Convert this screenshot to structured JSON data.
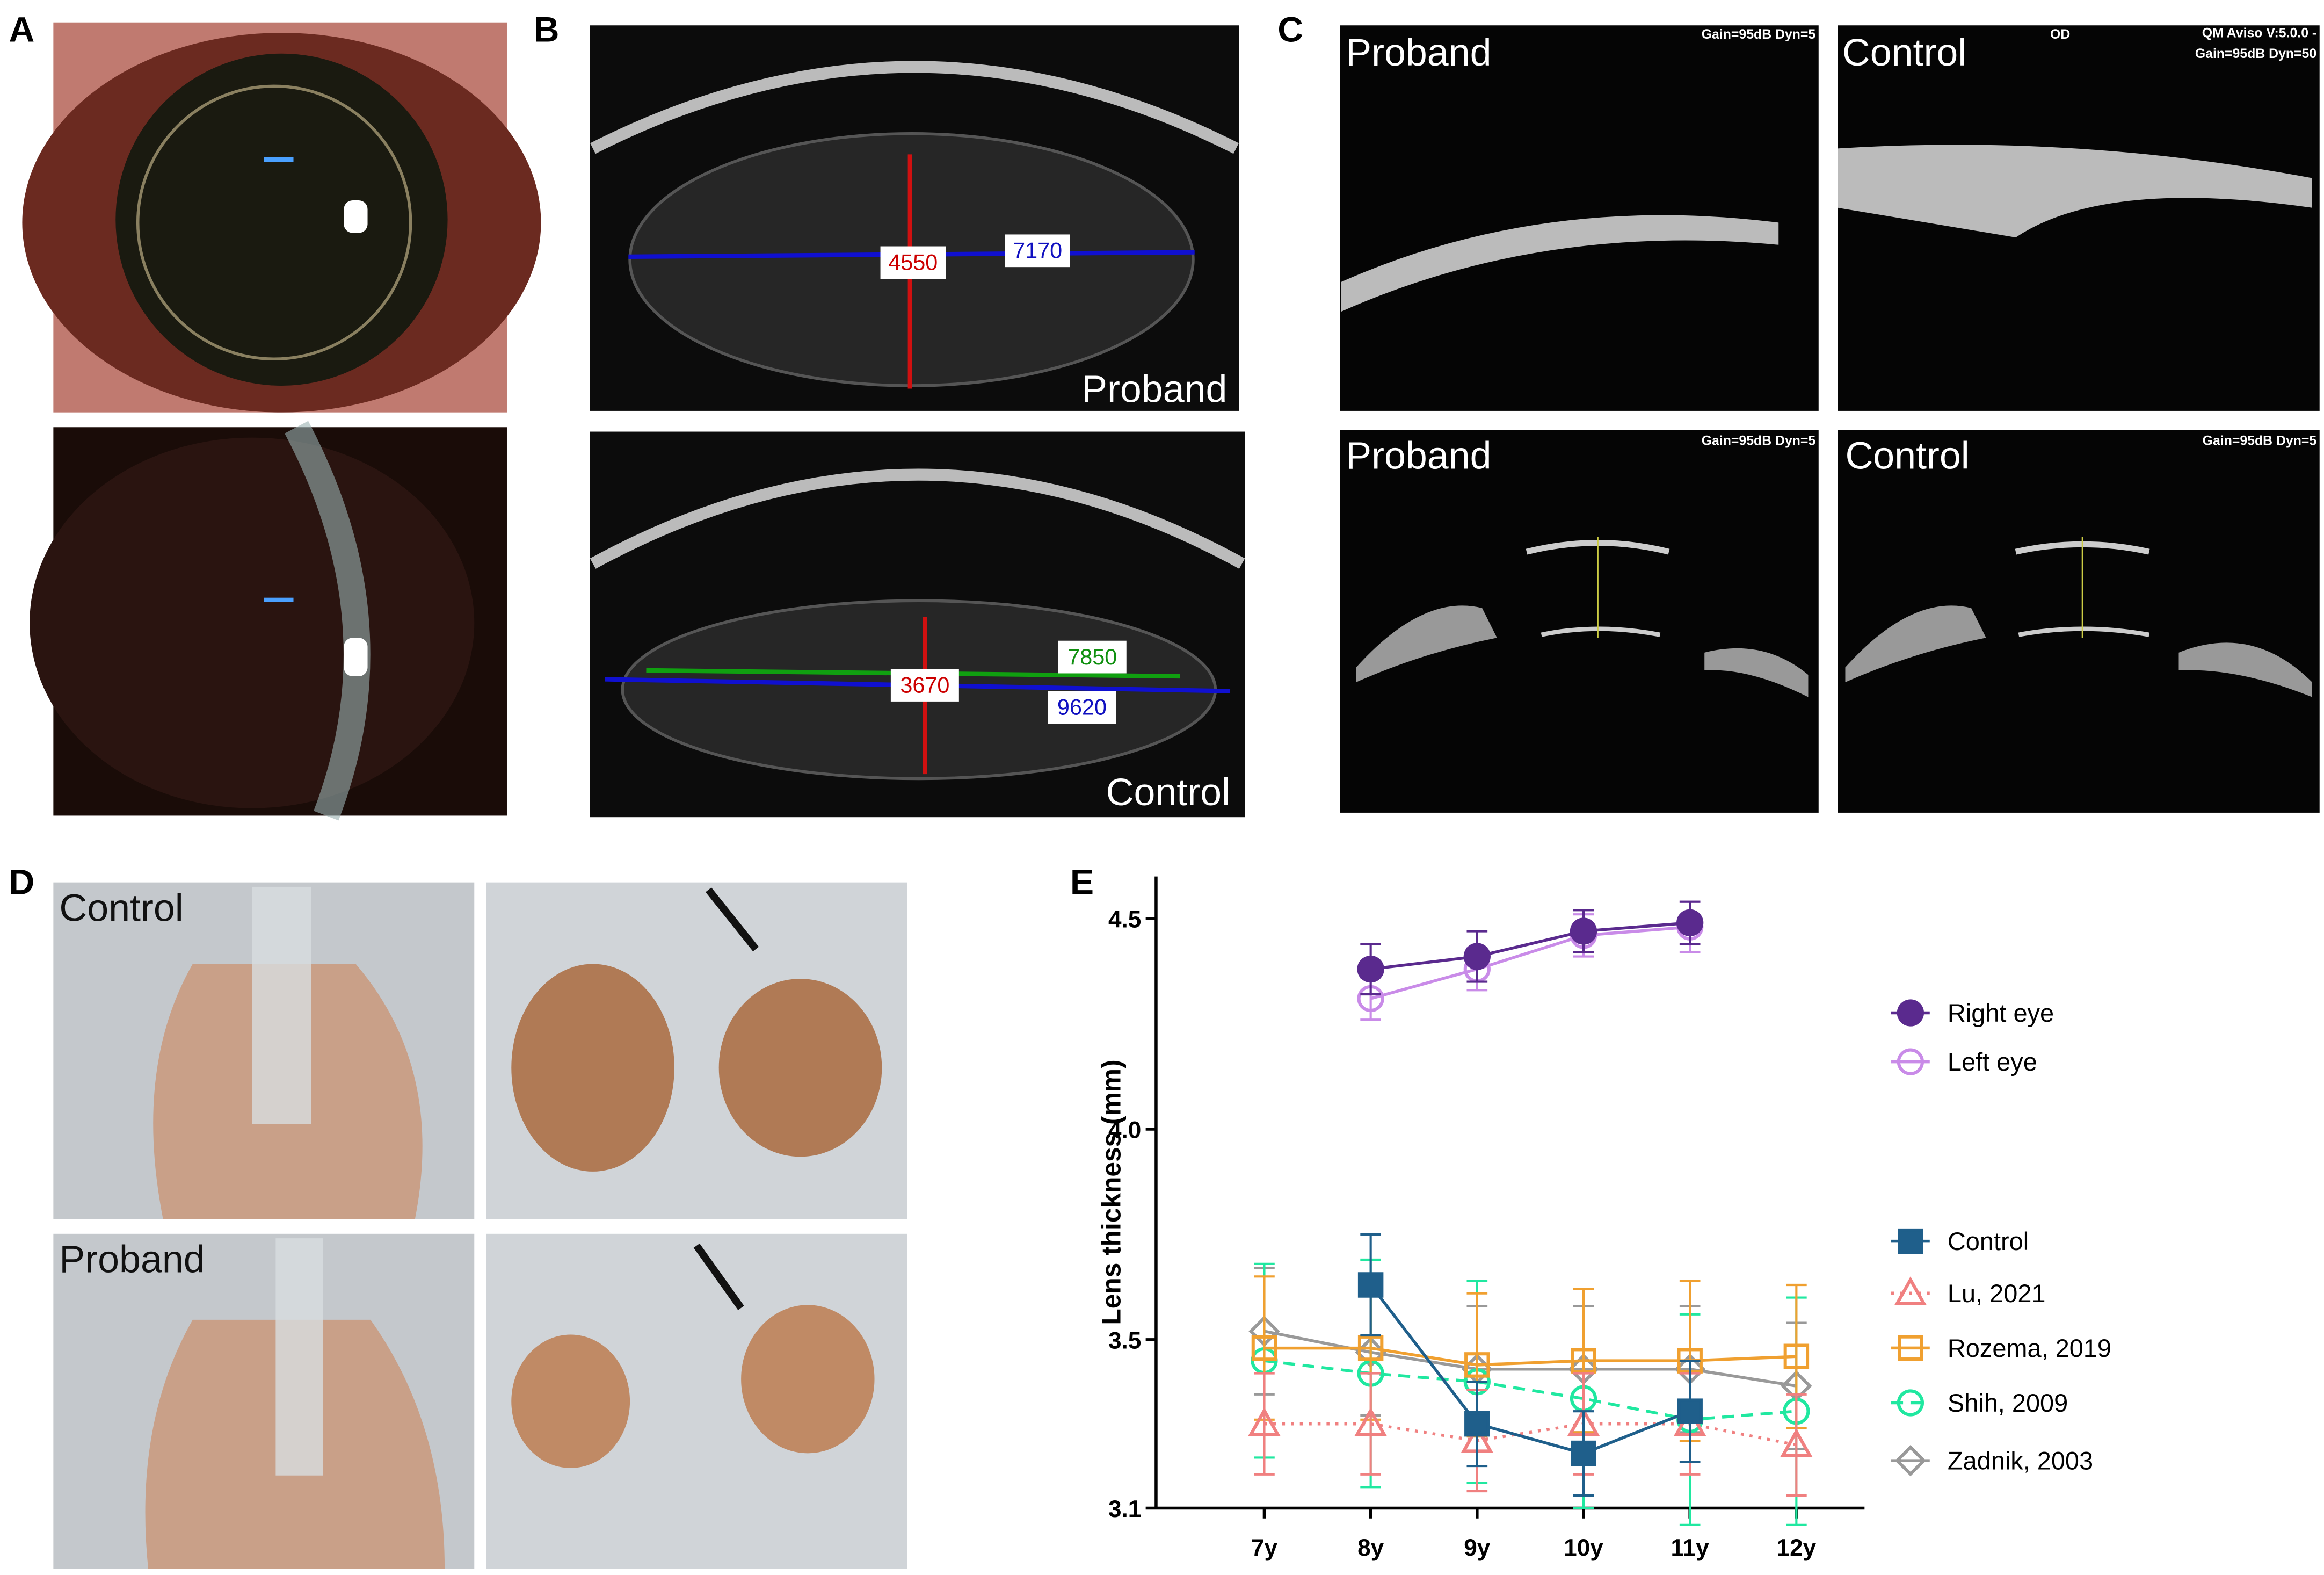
{
  "panels": {
    "A": {
      "label": "A"
    },
    "B": {
      "label": "B",
      "proband": {
        "name": "Proband",
        "values": [
          4550,
          7170
        ]
      },
      "control": {
        "name": "Control",
        "values": [
          7850,
          3670,
          9620
        ]
      }
    },
    "C": {
      "label": "C",
      "names": [
        "Proband",
        "Control",
        "Proband",
        "Control"
      ],
      "info": [
        "Gain=95dB Dyn=5",
        "OD",
        "QM Aviso V:5.0.0 -",
        "Gain=95dB Dyn=50",
        "Gain=95dB Dyn=5",
        "Gain=95dB Dyn=5"
      ]
    },
    "D": {
      "label": "D",
      "names": [
        "Control",
        "Proband"
      ]
    },
    "E": {
      "label": "E"
    }
  },
  "chart_data": {
    "type": "line",
    "ylabel": "Lens thickness (mm)",
    "categories": [
      "7y",
      "8y",
      "9y",
      "10y",
      "11y",
      "12y"
    ],
    "ylim": [
      3.1,
      4.6
    ],
    "yticks": [
      3.1,
      3.5,
      {
        "value": 4,
        "label": "4.0"
      },
      4.5
    ],
    "series": [
      {
        "name": "Right eye",
        "color": "#5a2a8e",
        "marker": "circle",
        "filled": true,
        "dash": "solid",
        "values": [
          null,
          4.38,
          4.41,
          4.47,
          4.49,
          null
        ],
        "errors": [
          null,
          0.06,
          0.06,
          0.05,
          0.05,
          null
        ]
      },
      {
        "name": "Left eye",
        "color": "#c98be8",
        "marker": "circle",
        "filled": false,
        "dash": "solid",
        "values": [
          null,
          4.31,
          4.38,
          4.46,
          4.48,
          null
        ],
        "errors": [
          null,
          0.05,
          0.05,
          0.05,
          0.06,
          null
        ]
      },
      {
        "name": "Control",
        "color": "#1f5f8b",
        "marker": "square",
        "filled": true,
        "dash": "solid",
        "values": [
          null,
          3.63,
          3.3,
          3.23,
          3.33,
          null
        ],
        "errors": [
          null,
          0.12,
          0.1,
          0.1,
          0.12,
          null
        ]
      },
      {
        "name": "Lu, 2021",
        "color": "#f08080",
        "marker": "triangle",
        "filled": false,
        "dash": "dotted",
        "values": [
          3.3,
          3.3,
          3.26,
          3.3,
          3.3,
          3.25
        ],
        "errors": [
          0.12,
          0.12,
          0.12,
          0.12,
          0.12,
          0.12
        ]
      },
      {
        "name": "Rozema, 2019",
        "color": "#f0a030",
        "marker": "square",
        "filled": false,
        "dash": "solid",
        "values": [
          3.48,
          3.48,
          3.44,
          3.45,
          3.45,
          3.46
        ],
        "errors": [
          0.17,
          0.17,
          0.17,
          0.17,
          0.19,
          0.17
        ]
      },
      {
        "name": "Shih, 2009",
        "color": "#20e8a0",
        "marker": "circle",
        "filled": false,
        "dash": "dashed",
        "values": [
          3.45,
          3.42,
          3.4,
          3.36,
          3.31,
          3.33
        ],
        "errors": [
          0.23,
          0.27,
          0.24,
          0.26,
          0.25,
          0.27
        ]
      },
      {
        "name": "Zadnik, 2003",
        "color": "#999999",
        "marker": "diamond",
        "filled": false,
        "dash": "solid",
        "values": [
          3.52,
          3.47,
          3.43,
          3.43,
          3.43,
          3.39
        ],
        "errors": [
          0.15,
          0.15,
          0.15,
          0.15,
          0.15,
          0.15
        ]
      }
    ]
  }
}
